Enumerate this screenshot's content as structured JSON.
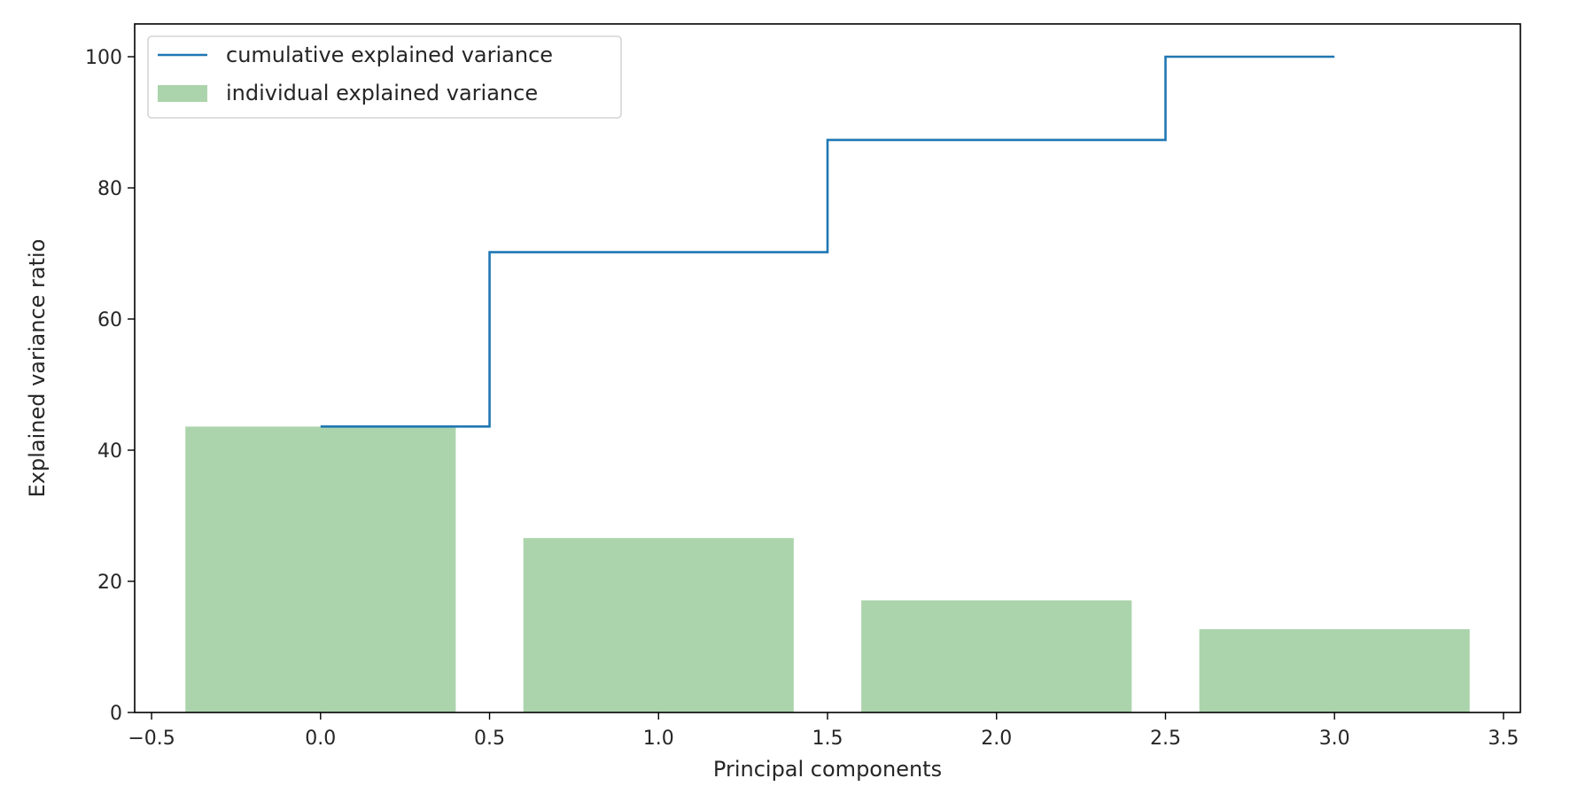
{
  "chart_data": {
    "type": "bar",
    "title": "",
    "xlabel": "Principal components",
    "ylabel": "Explained variance ratio",
    "xlim": [
      -0.55,
      3.55
    ],
    "ylim": [
      0,
      105
    ],
    "xticks": [
      "−0.5",
      "0.0",
      "0.5",
      "1.0",
      "1.5",
      "2.0",
      "2.5",
      "3.0",
      "3.5"
    ],
    "xtick_values": [
      -0.5,
      0.0,
      0.5,
      1.0,
      1.5,
      2.0,
      2.5,
      3.0,
      3.5
    ],
    "yticks": [
      "0",
      "20",
      "40",
      "60",
      "80",
      "100"
    ],
    "ytick_values": [
      0,
      20,
      40,
      60,
      80,
      100
    ],
    "grid": false,
    "legend_position": "top-left",
    "x": [
      0,
      1,
      2,
      3
    ],
    "bar_width": 0.8,
    "series": [
      {
        "name": "cumulative explained variance",
        "kind": "step",
        "step_where": "mid",
        "color": "#1f77b4",
        "values": [
          43.6,
          70.2,
          87.3,
          100.0
        ]
      },
      {
        "name": "individual explained variance",
        "kind": "bar",
        "color": "#acd4ac",
        "values": [
          43.6,
          26.6,
          17.1,
          12.7
        ]
      }
    ]
  }
}
